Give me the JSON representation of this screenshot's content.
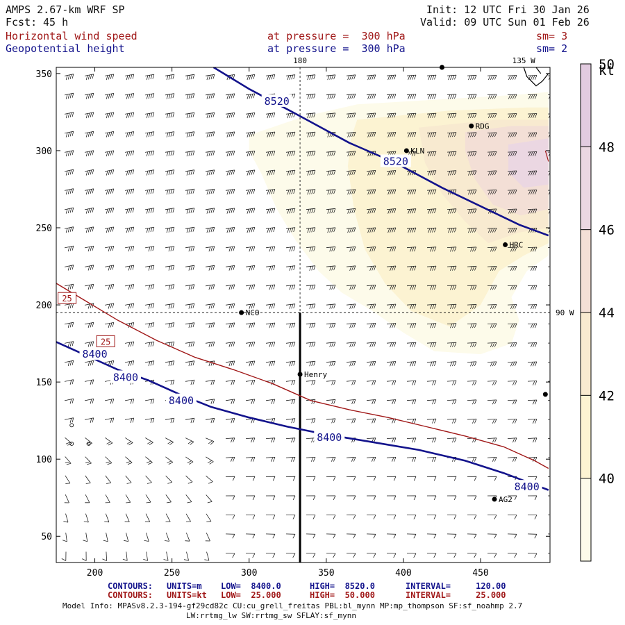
{
  "header": {
    "model": "AMPS 2.67-km WRF SP",
    "init": "Init: 12 UTC Fri 30 Jan 26",
    "fcst_label": "Fcst:",
    "fcst_hours": "45 h",
    "valid": "Valid: 09 UTC Sun 01 Feb 26",
    "field1": {
      "name": "Horizontal wind speed",
      "level": "at pressure =  300 hPa",
      "smooth": "sm= 3"
    },
    "field2": {
      "name": "Geopotential height",
      "level": "at pressure =  300 hPa",
      "smooth": "sm= 2"
    }
  },
  "chart_data": {
    "type": "contour map",
    "title": "Horizontal wind speed and geopotential height at 300 hPa",
    "xlim": [
      175,
      495
    ],
    "ylim": [
      33,
      354
    ],
    "x_ticks": [
      200,
      250,
      300,
      350,
      400,
      450
    ],
    "y_ticks": [
      50,
      100,
      150,
      200,
      250,
      300,
      350
    ],
    "meridian_labels": [
      {
        "text": "180",
        "x": 333,
        "y": 354,
        "anchor": "top"
      },
      {
        "text": "135 W",
        "x": 478,
        "y": 354,
        "anchor": "top"
      },
      {
        "text": "90 W",
        "x": 495,
        "y": 195,
        "anchor": "right"
      }
    ],
    "reference_lines": {
      "vertical_x": 333,
      "horizontal_y": 195
    },
    "cross_section_line": {
      "x": 333,
      "y_from": 195,
      "y_to": 33
    },
    "colorbar": {
      "unit": "kt",
      "levels": [
        40,
        42,
        44,
        46,
        48,
        50
      ],
      "colors": [
        "#fdfbea",
        "#fcf3d2",
        "#f8ead0",
        "#f3dfd6",
        "#ebd7e2",
        "#e2cbe0"
      ]
    },
    "shaded_regions": [
      {
        "level": "40-42 kt",
        "color": "#fdfbea",
        "points": [
          [
            300,
            310
          ],
          [
            335,
            322
          ],
          [
            370,
            330
          ],
          [
            420,
            333
          ],
          [
            470,
            336
          ],
          [
            494,
            338
          ],
          [
            494,
            232
          ],
          [
            480,
            222
          ],
          [
            470,
            205
          ],
          [
            475,
            190
          ],
          [
            470,
            175
          ],
          [
            450,
            168
          ],
          [
            420,
            170
          ],
          [
            400,
            182
          ],
          [
            380,
            196
          ],
          [
            360,
            208
          ],
          [
            345,
            222
          ],
          [
            330,
            242
          ],
          [
            318,
            262
          ],
          [
            308,
            285
          ],
          [
            300,
            300
          ]
        ]
      },
      {
        "level": "42-44 kt",
        "color": "#fcf3d2",
        "points": [
          [
            370,
            320
          ],
          [
            430,
            326
          ],
          [
            480,
            328
          ],
          [
            494,
            328
          ],
          [
            494,
            240
          ],
          [
            478,
            232
          ],
          [
            462,
            222
          ],
          [
            450,
            200
          ],
          [
            430,
            186
          ],
          [
            405,
            196
          ],
          [
            388,
            214
          ],
          [
            375,
            236
          ],
          [
            368,
            262
          ],
          [
            364,
            290
          ],
          [
            366,
            308
          ]
        ]
      },
      {
        "level": "44-46 kt",
        "color": "#f8ead0",
        "points": [
          [
            410,
            315
          ],
          [
            460,
            320
          ],
          [
            494,
            320
          ],
          [
            494,
            250
          ],
          [
            475,
            247
          ],
          [
            455,
            240
          ],
          [
            440,
            254
          ],
          [
            425,
            272
          ],
          [
            414,
            292
          ]
        ]
      },
      {
        "level": "46-48 kt",
        "color": "#f3dfd6",
        "points": [
          [
            440,
            312
          ],
          [
            470,
            316
          ],
          [
            494,
            316
          ],
          [
            494,
            262
          ],
          [
            476,
            258
          ],
          [
            458,
            265
          ],
          [
            446,
            282
          ],
          [
            440,
            300
          ]
        ]
      },
      {
        "level": "48-50 kt",
        "color": "#ebd7e2",
        "points": [
          [
            468,
            304
          ],
          [
            494,
            308
          ],
          [
            494,
            278
          ],
          [
            478,
            276
          ],
          [
            468,
            286
          ]
        ]
      }
    ],
    "contours": [
      {
        "field": "geopotential height",
        "units": "m",
        "value": 8520,
        "label": "8520",
        "color": "#13138c",
        "points": [
          [
            277,
            354
          ],
          [
            300,
            340
          ],
          [
            330,
            324
          ],
          [
            365,
            305
          ],
          [
            395,
            292
          ],
          [
            425,
            276
          ],
          [
            450,
            264
          ],
          [
            475,
            252
          ],
          [
            494,
            245
          ]
        ],
        "labels_at": [
          [
            318,
            332
          ],
          [
            395,
            293
          ]
        ]
      },
      {
        "field": "geopotential height",
        "units": "m",
        "value": 8400,
        "label": "8400",
        "color": "#13138c",
        "points": [
          [
            175,
            176
          ],
          [
            195,
            167
          ],
          [
            215,
            158
          ],
          [
            235,
            151
          ],
          [
            255,
            142
          ],
          [
            275,
            134
          ],
          [
            300,
            127
          ],
          [
            325,
            121
          ],
          [
            350,
            116
          ],
          [
            380,
            111
          ],
          [
            410,
            106
          ],
          [
            440,
            99
          ],
          [
            465,
            91
          ],
          [
            494,
            80
          ]
        ],
        "labels_at": [
          [
            200,
            168
          ],
          [
            220,
            153
          ],
          [
            256,
            138
          ],
          [
            352,
            114
          ],
          [
            480,
            82
          ]
        ]
      },
      {
        "field": "horizontal wind speed",
        "units": "kt",
        "value": 25,
        "label": "25",
        "color": "#a01818",
        "points": [
          [
            175,
            214
          ],
          [
            195,
            202
          ],
          [
            215,
            190
          ],
          [
            240,
            177
          ],
          [
            265,
            166
          ],
          [
            290,
            158
          ],
          [
            315,
            149
          ],
          [
            340,
            138
          ],
          [
            365,
            132
          ],
          [
            390,
            127
          ],
          [
            415,
            121
          ],
          [
            440,
            115
          ],
          [
            465,
            108
          ],
          [
            485,
            99
          ],
          [
            494,
            94
          ]
        ],
        "labels_at": [
          [
            182,
            204
          ],
          [
            207,
            176
          ]
        ]
      }
    ],
    "coast_segments": [
      [
        [
          478,
          354
        ],
        [
          480,
          348
        ],
        [
          486,
          342
        ],
        [
          490,
          345
        ],
        [
          494,
          350
        ]
      ],
      [
        [
          492,
          300
        ],
        [
          494,
          293
        ]
      ],
      [
        [
          486,
          354
        ],
        [
          489,
          350
        ]
      ]
    ],
    "stations": [
      {
        "name": "NCO",
        "x": 295,
        "y": 195
      },
      {
        "name": "Henry",
        "x": 333,
        "y": 155
      },
      {
        "name": "KLN",
        "x": 402,
        "y": 300
      },
      {
        "name": "RDG",
        "x": 444,
        "y": 316
      },
      {
        "name": "HRC",
        "x": 466,
        "y": 239
      },
      {
        "name": "AG2",
        "x": 459,
        "y": 74
      },
      {
        "name": "",
        "x": 492,
        "y": 142
      },
      {
        "name": "",
        "x": 425,
        "y": 354
      }
    ],
    "calm_markers": [
      [
        185,
        122
      ],
      [
        185,
        110
      ],
      [
        196,
        110
      ]
    ],
    "wind_barbs": "barb field covering the whole domain"
  },
  "footer": {
    "height_contours": {
      "label": "CONTOURS:",
      "units": "UNITS=m",
      "low": "LOW=  8400.0",
      "high": "HIGH=  8520.0",
      "interval": "INTERVAL=     120.00"
    },
    "wind_contours": {
      "label": "CONTOURS:",
      "units": "UNITS=kt",
      "low": "LOW=  25.000",
      "high": "HIGH=  50.000",
      "interval": "INTERVAL=     25.000"
    },
    "model_info": "Model Info: MPASv8.2.3-194-gf29cd82c CU:cu_grell_freitas PBL:bl_mynn MP:mp_thompson SF:sf_noahmp 2.7",
    "model_info2": "LW:rrtmg_lw SW:rrtmg_sw SFLAY:sf_mynn"
  }
}
